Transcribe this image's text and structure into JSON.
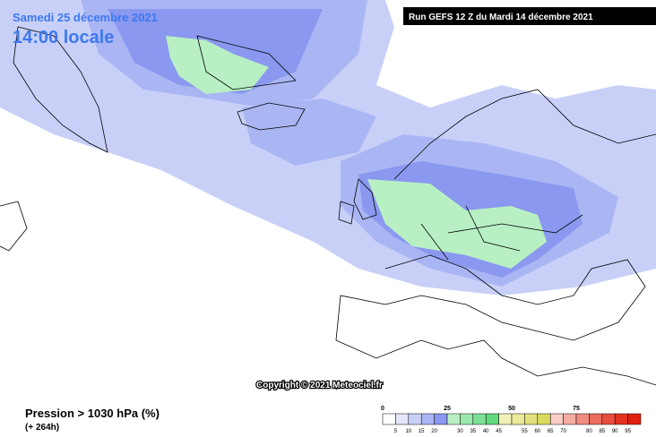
{
  "header": {
    "date": "Samedi 25 décembre 2021",
    "time": "14:00 locale",
    "run": "Run GEFS 12 Z du Mardi 14 décembre 2021"
  },
  "copyright": "Copyright © 2021 Meteociel.fr",
  "footer": {
    "variable": "Pression > 1030 hPa (%)",
    "lead": "(+ 264h)"
  },
  "legend": {
    "major_labels": [
      0,
      25,
      50,
      75
    ],
    "minor_labels": [
      5,
      10,
      15,
      20,
      30,
      35,
      40,
      45,
      55,
      60,
      65,
      70,
      80,
      85,
      90,
      95
    ],
    "colors": [
      "#ffffff",
      "#e4e6fb",
      "#c9d0f8",
      "#aab6f4",
      "#8a98ef",
      "#b8f0c4",
      "#9be8ad",
      "#7ee096",
      "#62d87f",
      "#f2f2b8",
      "#eaea9a",
      "#e2e27c",
      "#dada5e",
      "#f8cdc4",
      "#f4ada2",
      "#f08c80",
      "#ec6c5e",
      "#e84c3c",
      "#e4301e",
      "#e02010"
    ]
  }
}
